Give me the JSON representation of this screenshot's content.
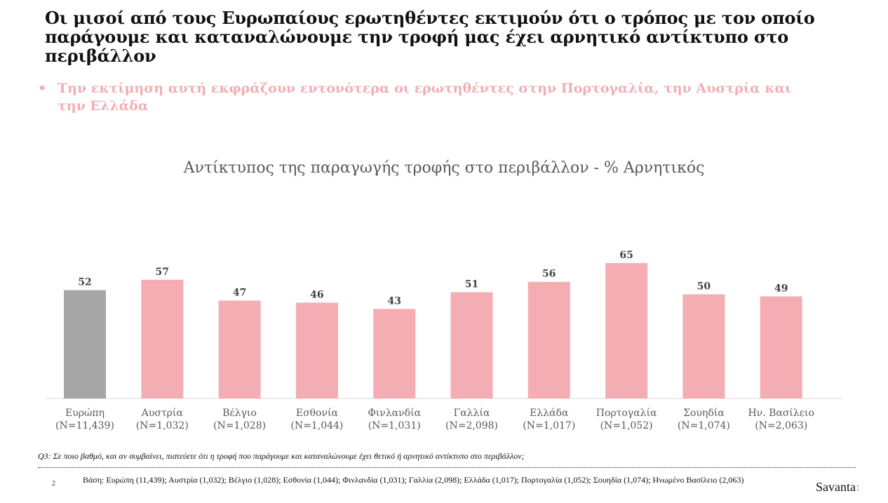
{
  "header": {
    "title": "Οι μισοί από τους Ευρωπαίους ερωτηθέντες εκτιμούν ότι ο τρόπος με τον οποίο παράγουμε και καταναλώνουμε την τροφή μας έχει αρνητικό αντίκτυπο στο περιβάλλον",
    "bullet": "•",
    "subtitle": "Την εκτίμηση αυτή εκφράζουν εντονότερα οι ερωτηθέντες στην Πορτογαλία, την Αυστρία και την Ελλάδα"
  },
  "colors": {
    "europe_bar": "#a6a6a6",
    "country_bar": "#f4aeb3",
    "accent": "#f2aeb4"
  },
  "chart_data": {
    "type": "bar",
    "title": "Αντίκτυπος της παραγωγής τροφής στο περιβάλλον - % Αρνητικός",
    "categories": [
      "Ευρώπη",
      "Αυστρία",
      "Βέλγιο",
      "Εσθονία",
      "Φινλανδία",
      "Γαλλία",
      "Ελλάδα",
      "Πορτογαλία",
      "Σουηδία",
      "Ην. Βασίλειο"
    ],
    "sample_sizes": [
      "(N=11,439)",
      "(N=1,032)",
      "(N=1,028)",
      "(N=1,044)",
      "(N=1,031)",
      "(N=2,098)",
      "(N=1,017)",
      "(N=1,052)",
      "(N=1,074)",
      "(N=2,063)"
    ],
    "values": [
      52,
      57,
      47,
      46,
      43,
      51,
      56,
      65,
      50,
      49
    ],
    "ylim": [
      0,
      65
    ],
    "grid": false,
    "legend": "none"
  },
  "footer": {
    "question": "Q3: Σε ποιο βαθμό, και αν συμβαίνει, πιστεύετε ότι η τροφή που παράγουμε και καταναλώνουμε έχει θετικό ή αρνητικό αντίκτυπο στο περιβάλλον;",
    "page_number": "2",
    "base": "Βάση: Ευρώπη (11,439); Αυστρία (1,032); Βέλγιο (1,028); Εσθονία (1,044); Φινλανδία (1,031); Γαλλία (2,098); Ελλάδα (1,017); Πορτογαλία (1,052); Σουηδία (1,074); Ηνωμένο Βασίλειο (2,063)",
    "brand": "Savanta",
    "brand_mark": ":"
  }
}
